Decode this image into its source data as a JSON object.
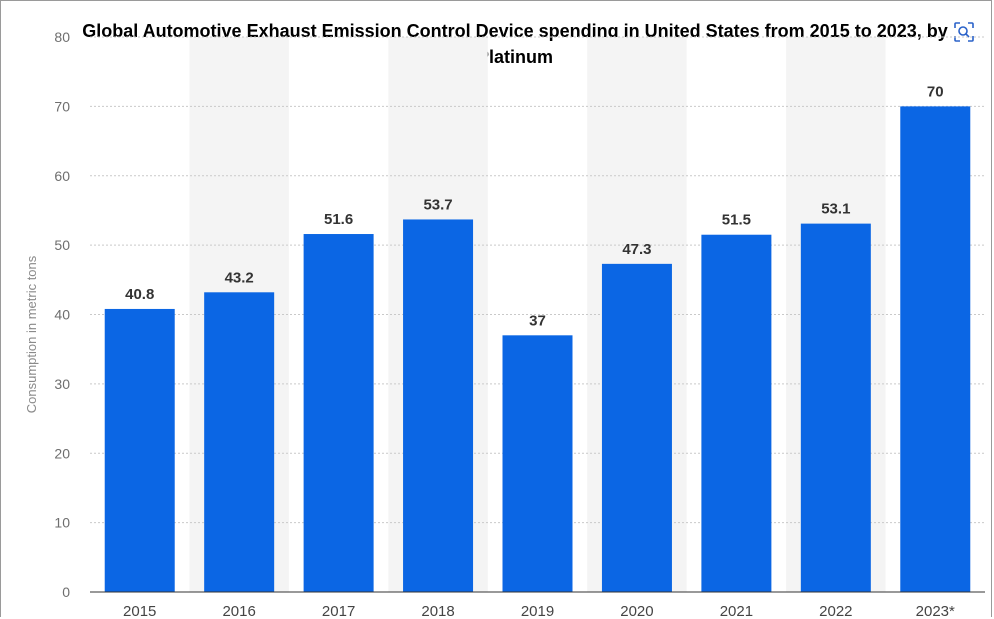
{
  "chart_data": {
    "type": "bar",
    "title": "Global Automotive Exhaust Emission Control Device spending in United States from 2015 to 2023, by Platinum",
    "xlabel": "",
    "ylabel": "Consumption in metric tons",
    "categories": [
      "2015",
      "2016",
      "2017",
      "2018",
      "2019",
      "2020",
      "2021",
      "2022",
      "2023*"
    ],
    "values": [
      40.8,
      43.2,
      51.6,
      53.7,
      37,
      47.3,
      51.5,
      53.1,
      70
    ],
    "data_labels": [
      "40.8",
      "43.2",
      "51.6",
      "53.7",
      "37",
      "47.3",
      "51.5",
      "53.1",
      "70"
    ],
    "yticks": [
      0,
      10,
      20,
      30,
      40,
      50,
      60,
      70,
      80
    ],
    "ylim": [
      0,
      80
    ],
    "grid": true,
    "bar_color": "#0b66e4",
    "band_color": "#f4f4f4",
    "grid_color": "#c9c9c9"
  },
  "toolbar": {
    "lens_icon": "image-search-icon"
  }
}
